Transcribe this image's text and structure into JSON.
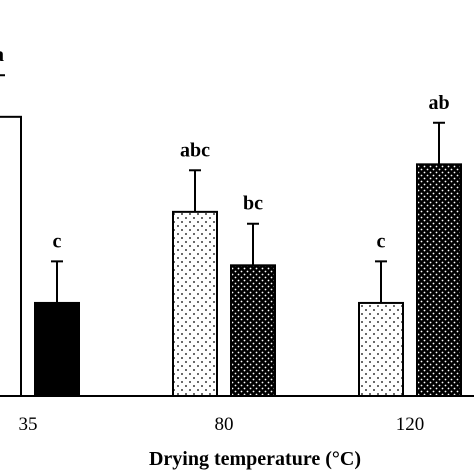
{
  "chart_data": {
    "type": "bar",
    "xlabel": "Drying temperature (°C)",
    "categories": [
      "35",
      "80",
      "120"
    ],
    "ylim": [
      0,
      100
    ],
    "grid": false,
    "legend": "none",
    "series": [
      {
        "pattern": "white",
        "values": [
          70.5,
          null,
          null
        ],
        "errors": [
          10.5,
          null,
          null
        ],
        "labels": [
          "a",
          null,
          null
        ]
      },
      {
        "pattern": "black",
        "values": [
          23.5,
          null,
          null
        ],
        "errors": [
          10.5,
          null,
          null
        ],
        "labels": [
          "c",
          null,
          null
        ]
      },
      {
        "pattern": "white-sparse-dots",
        "values": [
          null,
          46.5,
          23.5
        ],
        "errors": [
          null,
          10.5,
          10.5
        ],
        "labels": [
          null,
          "abc",
          "c"
        ]
      },
      {
        "pattern": "black-white-dots",
        "values": [
          null,
          33.0,
          58.5
        ],
        "errors": [
          null,
          10.5,
          10.5
        ],
        "labels": [
          null,
          "bc",
          "ab"
        ]
      }
    ]
  },
  "colors": {
    "bar_fill_light": "#ffffff",
    "bar_fill_dark": "#000000",
    "axis": "#000000"
  }
}
